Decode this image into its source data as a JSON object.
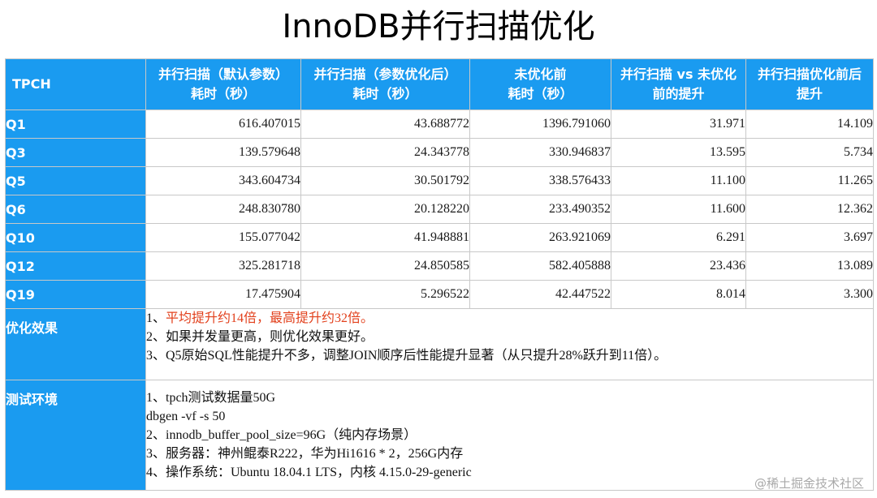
{
  "title": "InnoDB并行扫描优化",
  "table": {
    "headers": [
      {
        "line1": "TPCH",
        "line2": ""
      },
      {
        "line1": "并行扫描（默认参数）",
        "line2": "耗时（秒）"
      },
      {
        "line1": "并行扫描（参数优化后）",
        "line2": "耗时（秒）"
      },
      {
        "line1": "未优化前",
        "line2": "耗时（秒）"
      },
      {
        "line1": "并行扫描 vs 未优化",
        "line2": "前的提升"
      },
      {
        "line1": "并行扫描优化前后",
        "line2": "提升"
      }
    ],
    "rows": [
      {
        "label": "Q1",
        "values": [
          "616.407015",
          "43.688772",
          "1396.791060",
          "31.971",
          "14.109"
        ]
      },
      {
        "label": "Q3",
        "values": [
          "139.579648",
          "24.343778",
          "330.946837",
          "13.595",
          "5.734"
        ]
      },
      {
        "label": "Q5",
        "values": [
          "343.604734",
          "30.501792",
          "338.576433",
          "11.100",
          "11.265"
        ]
      },
      {
        "label": "Q6",
        "values": [
          "248.830780",
          "20.128220",
          "233.490352",
          "11.600",
          "12.362"
        ]
      },
      {
        "label": "Q10",
        "values": [
          "155.077042",
          "41.948881",
          "263.921069",
          "6.291",
          "3.697"
        ]
      },
      {
        "label": "Q12",
        "values": [
          "325.281718",
          "24.850585",
          "582.405888",
          "23.436",
          "13.089"
        ]
      },
      {
        "label": "Q19",
        "values": [
          "17.475904",
          "5.296522",
          "42.447522",
          "8.014",
          "3.300"
        ]
      }
    ],
    "effect": {
      "label": "优化效果",
      "lines": [
        {
          "prefix": "1、",
          "text": "平均提升约14倍，最高提升约32倍。"
        },
        {
          "prefix": "",
          "text": "2、如果并发量更高，则优化效果更好。"
        },
        {
          "prefix": "",
          "text": "3、Q5原始SQL性能提升不多，调整JOIN顺序后性能提升显著（从只提升28%跃升到11倍）。"
        }
      ],
      "highlight_color": "#e2401c"
    },
    "env": {
      "label": "测试环境",
      "lines": [
        "1、tpch测试数据量50G",
        "dbgen -vf -s 50",
        "2、innodb_buffer_pool_size=96G（纯内存场景）",
        "3、服务器：神州鲲泰R222，华为Hi1616 * 2，256G内存",
        "4、操作系统：Ubuntu 18.04.1 LTS，内核 4.15.0-29-generic"
      ]
    }
  },
  "watermark": "@稀土掘金技术社区",
  "colors": {
    "header_blue": "#1a9bf0"
  }
}
